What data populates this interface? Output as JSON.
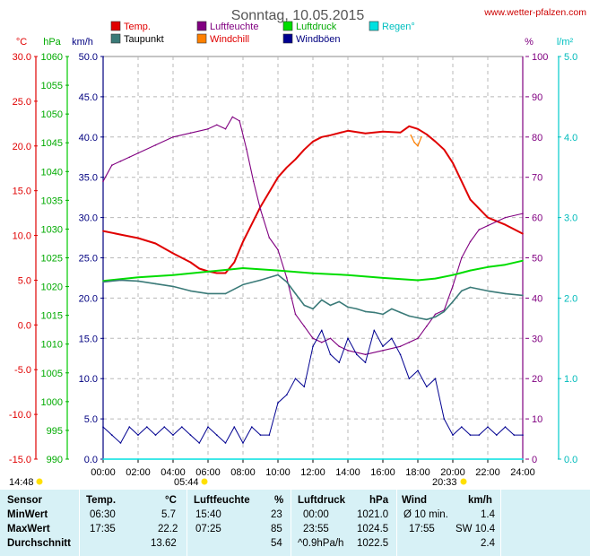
{
  "header": {
    "title": "Sonntag, 10.05.2015",
    "site": "www.wetter-pfalzen.com"
  },
  "legend": [
    {
      "label": "Temp.",
      "color": "#e00000"
    },
    {
      "label": "Luftfeuchte",
      "color": "#800080"
    },
    {
      "label": "Luftdruck",
      "color": "#00dd00"
    },
    {
      "label": "Regen°",
      "color": "#00e0e0"
    },
    {
      "label": "Taupunkt",
      "color": "#3a7a78"
    },
    {
      "label": "Windchill",
      "color": "#ff8000"
    },
    {
      "label": "Windböen",
      "color": "#000090"
    }
  ],
  "axes": {
    "temp": {
      "unit": "°C",
      "ticks": [
        "30.0",
        "25.0",
        "20.0",
        "15.0",
        "10.0",
        "5.0",
        "0.0",
        "-5.0",
        "-10.0",
        "-15.0"
      ],
      "color": "#e00000"
    },
    "pressure": {
      "unit": "hPa",
      "ticks": [
        "1060",
        "1055",
        "1050",
        "1045",
        "1040",
        "1035",
        "1030",
        "1025",
        "1020",
        "1015",
        "1010",
        "1005",
        "1000",
        "995",
        "990"
      ],
      "color": "#00aa00"
    },
    "wind": {
      "unit": "km/h",
      "ticks": [
        "50.0",
        "45.0",
        "40.0",
        "35.0",
        "30.0",
        "25.0",
        "20.0",
        "15.0",
        "10.0",
        "5.0",
        "0.0"
      ],
      "color": "#000080"
    },
    "humidity": {
      "unit": "%",
      "ticks": [
        "100",
        "90",
        "80",
        "70",
        "60",
        "50",
        "40",
        "30",
        "20",
        "10",
        "0"
      ],
      "color": "#800080"
    },
    "rain": {
      "unit": "l/m²",
      "ticks": [
        "5.0",
        "4.0",
        "3.0",
        "2.0",
        "1.0",
        "0.0"
      ],
      "color": "#00c0c0"
    },
    "time": {
      "ticks": [
        "00:00",
        "02:00",
        "04:00",
        "06:00",
        "08:00",
        "10:00",
        "12:00",
        "14:00",
        "16:00",
        "18:00",
        "20:00",
        "22:00",
        "24:00"
      ]
    }
  },
  "sun": {
    "daylength": "14:48",
    "sunrise": "05:44",
    "sunset": "20:33"
  },
  "chart_data": {
    "type": "line",
    "x_unit": "hours",
    "xlim": [
      0,
      24
    ],
    "series": [
      {
        "name": "Temp.",
        "axis": "temp",
        "color": "#e00000",
        "x": [
          0,
          1,
          2,
          3,
          4,
          5,
          5.5,
          6,
          6.5,
          7,
          7.5,
          8,
          9,
          10,
          10.5,
          11,
          11.5,
          12,
          12.5,
          13,
          14,
          15,
          16,
          17,
          17.5,
          18,
          18.5,
          19,
          19.5,
          20,
          21,
          22,
          23,
          24
        ],
        "y": [
          10.5,
          10.1,
          9.7,
          9.1,
          8.0,
          7.0,
          6.3,
          6.0,
          5.8,
          5.8,
          7.0,
          9.3,
          13.2,
          16.5,
          17.6,
          18.5,
          19.6,
          20.5,
          21.0,
          21.2,
          21.7,
          21.4,
          21.6,
          21.5,
          22.2,
          21.9,
          21.3,
          20.5,
          19.6,
          18.1,
          14.0,
          12.0,
          11.2,
          10.2
        ]
      },
      {
        "name": "Luftfeuchte",
        "axis": "humidity",
        "color": "#800080",
        "x": [
          0,
          0.5,
          1,
          1.5,
          2,
          3,
          4,
          5,
          6,
          6.5,
          7,
          7.4,
          7.8,
          8.2,
          8.6,
          9,
          9.5,
          10,
          10.5,
          11,
          11.5,
          12,
          12.5,
          13,
          13.5,
          14,
          15,
          16,
          17,
          17.5,
          18,
          18.5,
          19,
          19.5,
          20,
          20.5,
          21,
          21.5,
          22,
          23,
          24
        ],
        "y": [
          69,
          73,
          74,
          75,
          76,
          78,
          80,
          81,
          82,
          83,
          82,
          85,
          84,
          77,
          69,
          62,
          55,
          52,
          45,
          36,
          33,
          30,
          29,
          30,
          28,
          27,
          26,
          27,
          28,
          29,
          30,
          33,
          36,
          37,
          43,
          50,
          54,
          57,
          58,
          60,
          61
        ]
      },
      {
        "name": "Luftdruck",
        "axis": "pressure",
        "color": "#00dd00",
        "x": [
          0,
          2,
          4,
          6,
          8,
          10,
          12,
          14,
          16,
          18,
          19,
          20,
          21,
          22,
          23,
          24
        ],
        "y": [
          1021.0,
          1021.6,
          1022.0,
          1022.6,
          1023.2,
          1022.8,
          1022.3,
          1022.0,
          1021.5,
          1021.1,
          1021.4,
          1022.0,
          1022.8,
          1023.4,
          1023.8,
          1024.5
        ]
      },
      {
        "name": "Taupunkt",
        "axis": "temp",
        "color": "#3a7a78",
        "x": [
          0,
          1,
          2,
          3,
          4,
          5,
          6,
          7,
          8,
          9,
          10,
          10.5,
          11,
          11.5,
          12,
          12.5,
          13,
          13.5,
          14,
          14.5,
          15,
          15.5,
          16,
          16.5,
          17,
          17.5,
          18,
          18.5,
          19,
          19.5,
          20,
          20.5,
          21,
          21.5,
          22,
          23,
          24
        ],
        "y": [
          4.8,
          5.0,
          4.9,
          4.6,
          4.3,
          3.8,
          3.5,
          3.5,
          4.5,
          5.0,
          5.6,
          4.8,
          3.5,
          2.2,
          1.8,
          2.8,
          2.2,
          2.6,
          2.0,
          1.8,
          1.5,
          1.4,
          1.2,
          1.8,
          1.4,
          1.0,
          0.8,
          0.6,
          0.9,
          1.5,
          2.6,
          3.8,
          4.2,
          4.0,
          3.8,
          3.5,
          3.3
        ]
      },
      {
        "name": "Windchill",
        "axis": "temp",
        "color": "#ff8000",
        "x": [
          17.6,
          17.8,
          18.0,
          18.2
        ],
        "y": [
          21.2,
          20.4,
          20.0,
          21.0
        ]
      },
      {
        "name": "Windböen",
        "axis": "wind",
        "color": "#000090",
        "x": [
          0,
          0.5,
          1,
          1.5,
          2,
          2.5,
          3,
          3.5,
          4,
          4.5,
          5,
          5.5,
          6,
          6.5,
          7,
          7.5,
          8,
          8.5,
          9,
          9.5,
          10,
          10.5,
          11,
          11.5,
          12,
          12.5,
          13,
          13.5,
          14,
          14.5,
          15,
          15.5,
          16,
          16.5,
          17,
          17.5,
          18,
          18.5,
          19,
          19.5,
          20,
          20.5,
          21,
          21.5,
          22,
          22.5,
          23,
          23.5,
          24
        ],
        "y": [
          4,
          3,
          2,
          4,
          3,
          4,
          3,
          4,
          3,
          4,
          3,
          2,
          4,
          3,
          2,
          4,
          2,
          4,
          3,
          3,
          7,
          8,
          10,
          9,
          14,
          16,
          13,
          12,
          15,
          13,
          12,
          16,
          14,
          15,
          13,
          10,
          11,
          9,
          10,
          5,
          3,
          4,
          3,
          3,
          4,
          3,
          4,
          3,
          3
        ]
      },
      {
        "name": "Regen°",
        "axis": "rain",
        "color": "#00e0e0",
        "x": [
          0,
          24
        ],
        "y": [
          0,
          0
        ]
      }
    ]
  },
  "stats": {
    "headers": {
      "sensor": "Sensor",
      "temp": "Temp.",
      "temp_unit": "°C",
      "hum": "Luftfeuchte",
      "hum_unit": "%",
      "press": "Luftdruck",
      "press_unit": "hPa",
      "wind": "Wind",
      "wind_unit": "km/h"
    },
    "min": {
      "label": "MinWert",
      "t_time": "06:30",
      "t_val": "5.7",
      "h_time": "15:40",
      "h_val": "23",
      "p_time": "00:00",
      "p_val": "1021.0",
      "w_label": "Ø 10 min.",
      "w_val": "1.4"
    },
    "max": {
      "label": "MaxWert",
      "t_time": "17:35",
      "t_val": "22.2",
      "h_time": "07:25",
      "h_val": "85",
      "p_time": "23:55",
      "p_val": "1024.5",
      "w_time": "17:55",
      "w_val": "SW 10.4"
    },
    "avg": {
      "label": "Durchschnitt",
      "t_val": "13.62",
      "h_val": "54",
      "p_label": "^0.9hPa/h",
      "p_val": "1022.5",
      "w_val": "2.4"
    }
  }
}
